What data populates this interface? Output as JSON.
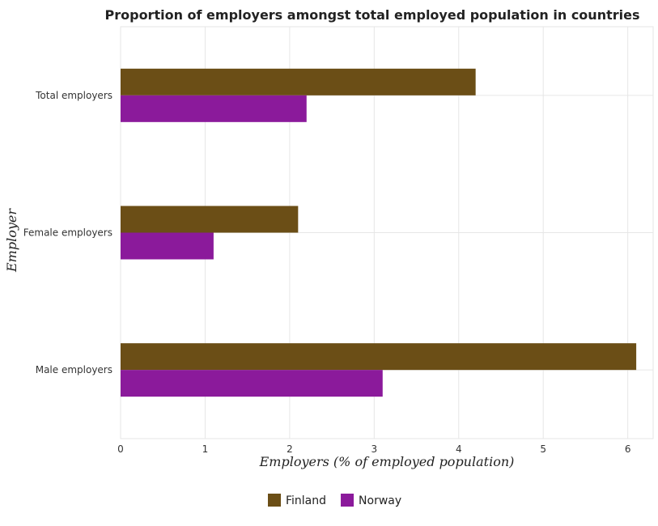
{
  "chart_data": {
    "type": "bar",
    "orientation": "horizontal",
    "title": "Proportion of employers amongst total employed population in countries",
    "xlabel": "Employers (% of employed population)",
    "ylabel": "Employer",
    "categories": [
      "Total employers",
      "Female employers",
      "Male employers"
    ],
    "series": [
      {
        "name": "Finland",
        "values": [
          4.2,
          2.1,
          6.1
        ],
        "color": "#6b4e16"
      },
      {
        "name": "Norway",
        "values": [
          2.2,
          1.1,
          3.1
        ],
        "color": "#8b1a9b"
      }
    ],
    "xlim": [
      0,
      6.3
    ],
    "xticks": [
      0,
      1,
      2,
      3,
      4,
      5,
      6
    ],
    "xtick_labels": [
      "0",
      "1",
      "2",
      "3",
      "4",
      "5",
      "6"
    ],
    "grid": true,
    "legend_position": "bottom-center"
  }
}
